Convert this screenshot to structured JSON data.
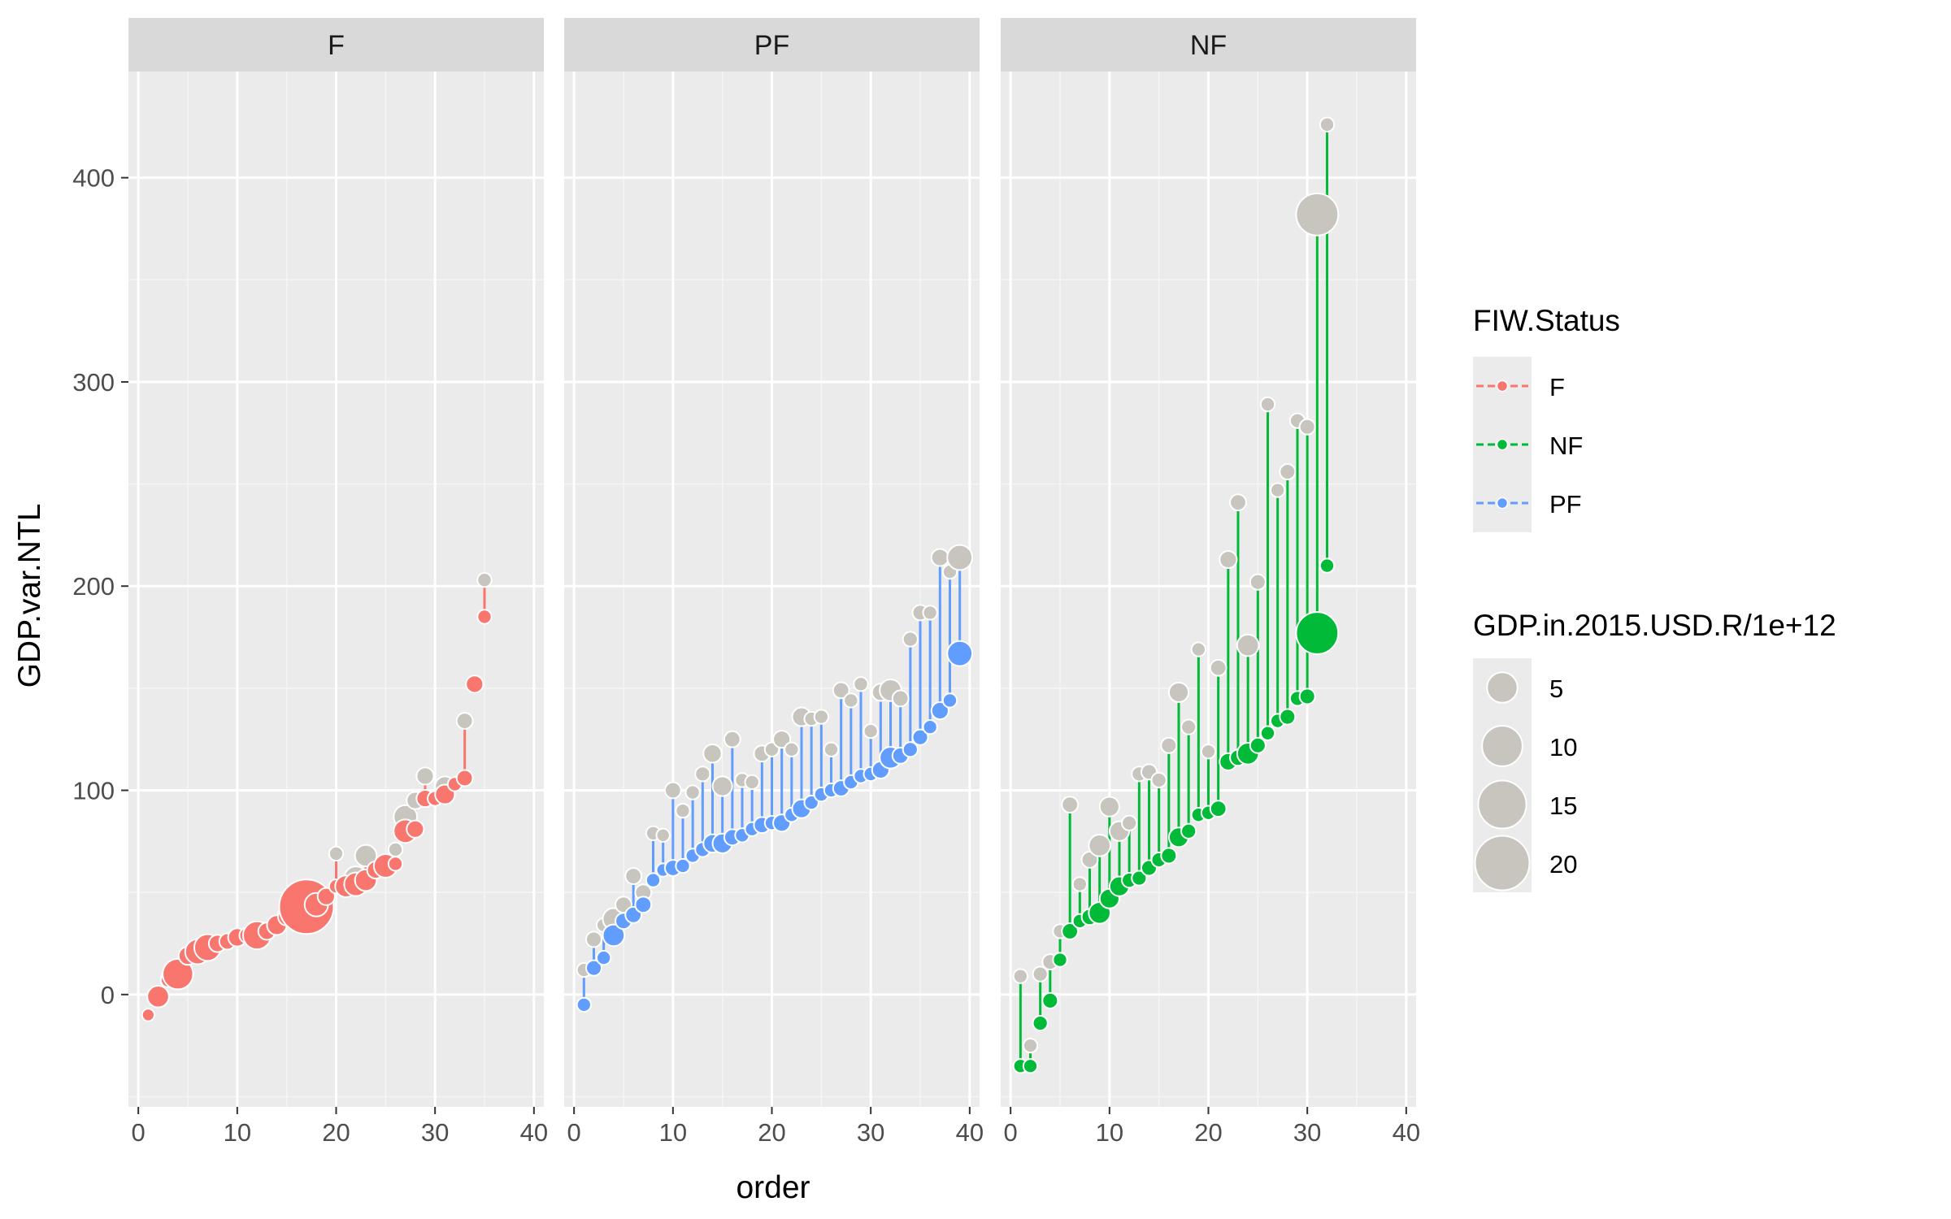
{
  "chart_data": {
    "type": "scatter",
    "title": "",
    "xlabel": "order",
    "ylabel": "GDP.var.NTL",
    "xlim": [
      -1,
      41
    ],
    "ylim": [
      -55,
      452
    ],
    "xticks": [
      0,
      10,
      20,
      30,
      40
    ],
    "yticks": [
      0,
      100,
      200,
      300,
      400
    ],
    "grid": true,
    "legend_position": "right",
    "colors": {
      "F": "#F8766D",
      "NF": "#00BA38",
      "PF": "#619CFF",
      "reference": "#C8C5BF"
    },
    "legend": {
      "color_title": "FIW.Status",
      "color_entries": [
        "F",
        "NF",
        "PF"
      ],
      "size_title": "GDP.in.2015.USD.R/1e+12",
      "size_entries": [
        5,
        10,
        15,
        20
      ]
    },
    "panels": [
      {
        "name": "F",
        "points": [
          [
            1,
            -10,
            -10,
            0.3
          ],
          [
            2,
            -1,
            -1,
            2
          ],
          [
            3,
            7,
            8,
            0.5
          ],
          [
            4,
            10,
            10,
            5
          ],
          [
            5,
            19,
            19,
            1.2
          ],
          [
            6,
            21,
            21,
            3
          ],
          [
            7,
            23,
            23,
            3.5
          ],
          [
            8,
            25,
            25,
            1
          ],
          [
            9,
            26,
            26,
            0.8
          ],
          [
            10,
            28,
            28,
            1.2
          ],
          [
            11,
            29,
            29,
            0.7
          ],
          [
            12,
            29,
            29,
            4
          ],
          [
            13,
            31,
            31,
            1
          ],
          [
            14,
            34,
            34,
            1.5
          ],
          [
            15,
            38,
            39,
            1
          ],
          [
            16,
            42,
            48,
            1.5
          ],
          [
            17,
            43,
            43,
            20
          ],
          [
            18,
            44,
            44,
            2.5
          ],
          [
            19,
            48,
            48,
            1
          ],
          [
            20,
            53,
            69,
            0.5
          ],
          [
            21,
            53,
            53,
            2
          ],
          [
            22,
            54,
            57,
            2.5
          ],
          [
            23,
            56,
            68,
            2
          ],
          [
            24,
            61,
            61,
            1
          ],
          [
            25,
            63,
            63,
            2.5
          ],
          [
            26,
            64,
            71,
            0.5
          ],
          [
            27,
            80,
            87,
            2.5
          ],
          [
            28,
            81,
            95,
            1
          ],
          [
            29,
            96,
            107,
            1
          ],
          [
            30,
            96,
            96,
            0.6
          ],
          [
            31,
            98,
            102,
            1.5
          ],
          [
            32,
            103,
            103,
            0.5
          ],
          [
            33,
            106,
            134,
            0.8
          ],
          [
            34,
            152,
            152,
            1
          ],
          [
            35,
            185,
            203,
            0.5
          ]
        ]
      },
      {
        "name": "PF",
        "points": [
          [
            1,
            -5,
            12,
            0.5
          ],
          [
            2,
            13,
            27,
            0.7
          ],
          [
            3,
            18,
            34,
            0.5
          ],
          [
            4,
            29,
            37,
            2
          ],
          [
            5,
            36,
            44,
            0.8
          ],
          [
            6,
            39,
            58,
            0.8
          ],
          [
            7,
            44,
            50,
            0.8
          ],
          [
            8,
            56,
            79,
            0.5
          ],
          [
            9,
            61,
            78,
            0.4
          ],
          [
            10,
            62,
            100,
            0.8
          ],
          [
            11,
            63,
            90,
            0.5
          ],
          [
            12,
            68,
            99,
            0.5
          ],
          [
            13,
            71,
            108,
            0.6
          ],
          [
            14,
            74,
            118,
            1.2
          ],
          [
            15,
            74,
            102,
            1.5
          ],
          [
            16,
            77,
            125,
            0.8
          ],
          [
            17,
            78,
            105,
            0.5
          ],
          [
            18,
            81,
            104,
            0.5
          ],
          [
            19,
            83,
            118,
            0.8
          ],
          [
            20,
            84,
            120,
            0.5
          ],
          [
            21,
            84,
            125,
            1
          ],
          [
            22,
            88,
            120,
            0.5
          ],
          [
            23,
            91,
            136,
            1.3
          ],
          [
            24,
            94,
            135,
            0.5
          ],
          [
            25,
            98,
            136,
            0.5
          ],
          [
            26,
            100,
            120,
            0.5
          ],
          [
            27,
            101,
            149,
            0.8
          ],
          [
            28,
            104,
            144,
            0.5
          ],
          [
            29,
            107,
            152,
            0.5
          ],
          [
            30,
            108,
            129,
            0.5
          ],
          [
            31,
            110,
            148,
            1
          ],
          [
            32,
            116,
            149,
            2
          ],
          [
            33,
            117,
            145,
            0.8
          ],
          [
            34,
            120,
            174,
            0.6
          ],
          [
            35,
            126,
            187,
            0.7
          ],
          [
            36,
            131,
            187,
            0.5
          ],
          [
            37,
            139,
            214,
            1
          ],
          [
            38,
            144,
            207,
            0.5
          ],
          [
            39,
            167,
            214,
            3
          ]
        ]
      },
      {
        "name": "NF",
        "points": [
          [
            1,
            -35,
            9,
            0.5
          ],
          [
            2,
            -35,
            -25,
            0.5
          ],
          [
            3,
            -14,
            10,
            0.6
          ],
          [
            4,
            -3,
            16,
            0.7
          ],
          [
            5,
            17,
            31,
            0.5
          ],
          [
            6,
            31,
            93,
            0.8
          ],
          [
            7,
            36,
            54,
            0.5
          ],
          [
            8,
            38,
            66,
            0.8
          ],
          [
            9,
            40,
            73,
            2
          ],
          [
            10,
            47,
            92,
            1.5
          ],
          [
            11,
            53,
            80,
            1.5
          ],
          [
            12,
            56,
            84,
            0.6
          ],
          [
            13,
            57,
            108,
            0.6
          ],
          [
            14,
            62,
            109,
            0.7
          ],
          [
            15,
            66,
            105,
            0.6
          ],
          [
            16,
            68,
            122,
            0.7
          ],
          [
            17,
            77,
            148,
            1.5
          ],
          [
            18,
            80,
            131,
            0.6
          ],
          [
            19,
            88,
            169,
            0.5
          ],
          [
            20,
            89,
            119,
            0.5
          ],
          [
            21,
            91,
            160,
            0.8
          ],
          [
            22,
            114,
            213,
            1
          ],
          [
            23,
            116,
            241,
            0.8
          ],
          [
            24,
            118,
            171,
            2
          ],
          [
            25,
            122,
            202,
            0.7
          ],
          [
            26,
            128,
            289,
            0.5
          ],
          [
            27,
            134,
            247,
            0.5
          ],
          [
            28,
            136,
            256,
            0.7
          ],
          [
            29,
            145,
            281,
            0.6
          ],
          [
            30,
            146,
            278,
            0.7
          ],
          [
            31,
            177,
            382,
            11
          ],
          [
            32,
            210,
            426,
            0.5
          ]
        ]
      }
    ]
  }
}
